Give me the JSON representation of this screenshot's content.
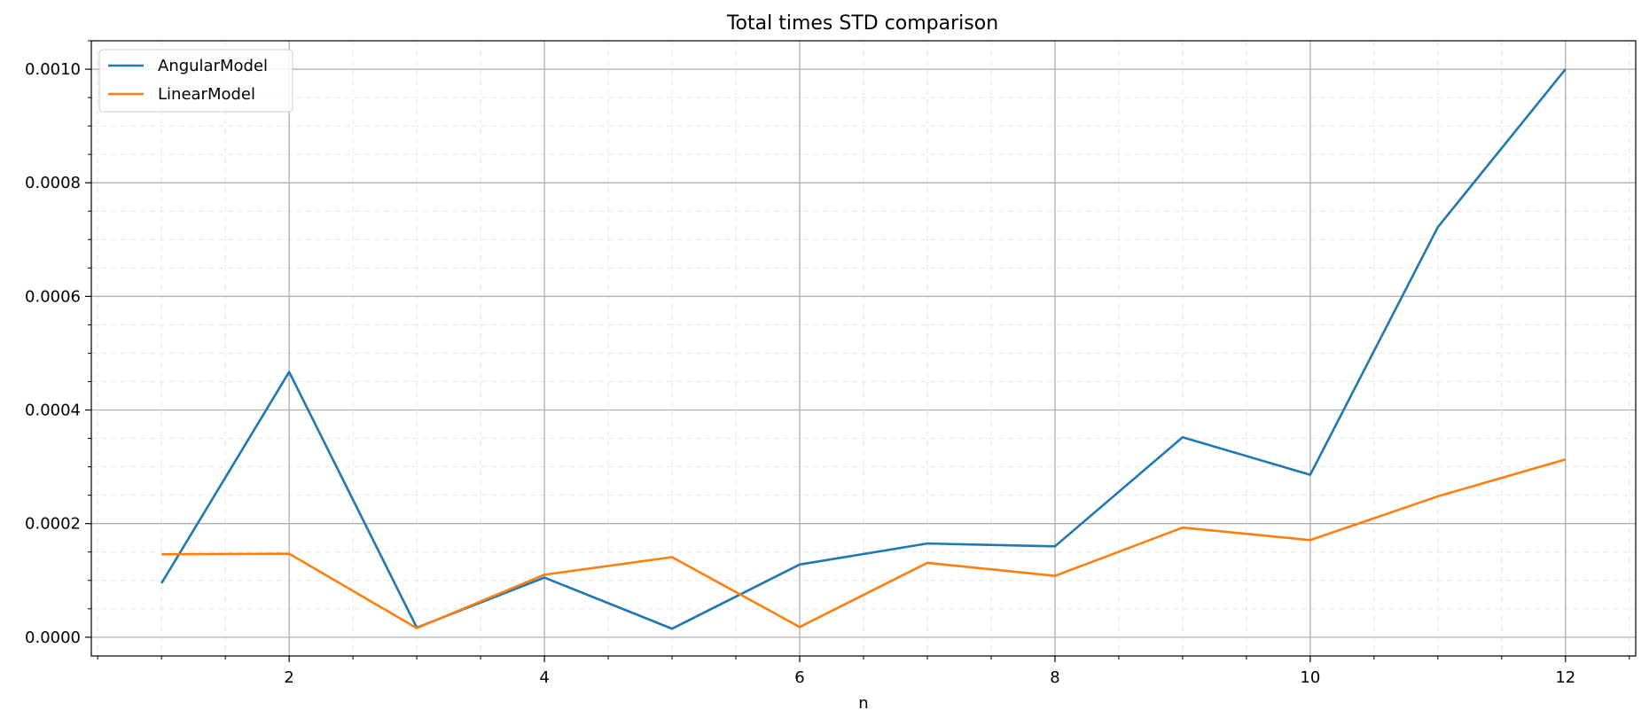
{
  "chart_data": {
    "type": "line",
    "title": "Total times STD comparison",
    "xlabel": "n",
    "ylabel": "",
    "xlim": [
      0.45,
      12.55
    ],
    "ylim": [
      -3.3e-05,
      0.00105
    ],
    "x_ticks": [
      2,
      4,
      6,
      8,
      10,
      12
    ],
    "x_tick_labels": [
      "2",
      "4",
      "6",
      "8",
      "10",
      "12"
    ],
    "y_ticks": [
      0.0,
      0.0002,
      0.0004,
      0.0006,
      0.0008,
      0.001
    ],
    "y_tick_labels": [
      "0.0000",
      "0.0002",
      "0.0004",
      "0.0006",
      "0.0008",
      "0.0010"
    ],
    "grid": true,
    "minor_grid": true,
    "legend_position": "top-left",
    "x": [
      1,
      2,
      3,
      4,
      5,
      6,
      7,
      8,
      9,
      10,
      11,
      12
    ],
    "series": [
      {
        "name": "AngularModel",
        "color": "#1f77b4",
        "values": [
          9.5e-05,
          0.000467,
          1.7e-05,
          0.000105,
          1.5e-05,
          0.000128,
          0.000165,
          0.00016,
          0.000352,
          0.000286,
          0.000722,
          0.001
        ]
      },
      {
        "name": "LinearModel",
        "color": "#ff7f0e",
        "values": [
          0.000146,
          0.000147,
          1.6e-05,
          0.00011,
          0.000141,
          1.8e-05,
          0.000131,
          0.000108,
          0.000193,
          0.000171,
          0.000248,
          0.000313
        ]
      }
    ]
  }
}
